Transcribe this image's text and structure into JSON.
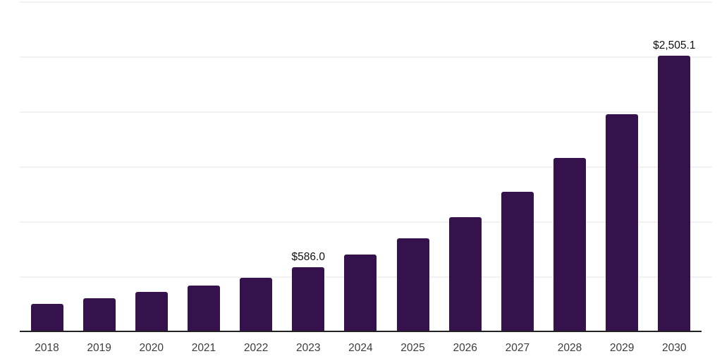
{
  "chart": {
    "background_color": "#ffffff",
    "bar_color": "#36124d",
    "gridline_color": "#f1f1f1",
    "axis_line_color": "#222222",
    "year_label_color": "#3d3d3d",
    "value_label_color": "#111111"
  },
  "chart_data": {
    "type": "bar",
    "title": "",
    "xlabel": "",
    "ylabel": "",
    "categories": [
      "2018",
      "2019",
      "2020",
      "2021",
      "2022",
      "2023",
      "2024",
      "2025",
      "2026",
      "2027",
      "2028",
      "2029",
      "2030"
    ],
    "values": [
      250.0,
      299.0,
      357.0,
      414.0,
      490.0,
      586.0,
      702.0,
      849.0,
      1037.0,
      1267.0,
      1580.0,
      1977.0,
      2505.1
    ],
    "value_labels": [
      "",
      "",
      "",
      "",
      "",
      "$586.0",
      "",
      "",
      "",
      "",
      "",
      "",
      "$2,505.1"
    ],
    "ylim": [
      0,
      3000
    ],
    "grid_step": 500,
    "grid": true,
    "legend": false,
    "y_axis_tick_labels_visible": false
  }
}
